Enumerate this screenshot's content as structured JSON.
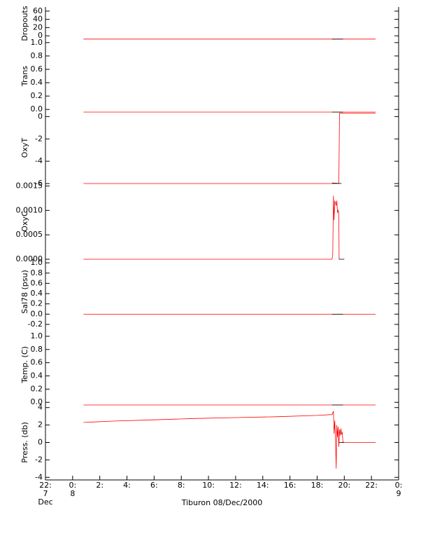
{
  "chart_data": [
    {
      "type": "line",
      "ylabel": "Dropouts",
      "ylim": [
        -10,
        70
      ],
      "yticks": [
        0,
        20,
        40,
        60
      ],
      "series": [
        {
          "color": "#ff0000",
          "x": [
            0.8,
            22.3
          ],
          "values": [
            -8,
            -8
          ]
        },
        {
          "color": "#000000",
          "x": [
            19.1,
            19.9
          ],
          "values": [
            -8,
            -8
          ]
        }
      ]
    },
    {
      "type": "line",
      "ylabel": "Trans",
      "ylim": [
        -0.04,
        1.04
      ],
      "yticks": [
        {
          "value": 0,
          "label": "0.0"
        },
        {
          "value": 0.2,
          "label": "0.2"
        },
        {
          "value": 0.4,
          "label": "0.4"
        },
        {
          "value": 0.6,
          "label": "0.6"
        },
        {
          "value": 0.8,
          "label": "0.8"
        },
        {
          "value": 1,
          "label": "1.0"
        }
      ],
      "series": [
        {
          "color": "#ff0000",
          "x": [
            0.8,
            22.3
          ],
          "values": [
            -0.04,
            -0.04
          ]
        },
        {
          "color": "#000000",
          "x": [
            19.1,
            19.9
          ],
          "values": [
            -0.04,
            -0.04
          ]
        }
      ]
    },
    {
      "type": "line",
      "ylabel": "OxyT",
      "ylim": [
        -6,
        0.4
      ],
      "yticks": [
        -6,
        -4,
        -2,
        0
      ],
      "series": [
        {
          "color": "#ff0000",
          "x": [
            0.8,
            19.6,
            19.65,
            22.3
          ],
          "values": [
            -6,
            -6,
            0.3,
            0.3
          ]
        },
        {
          "color": "#000000",
          "x": [
            19.1,
            19.8
          ],
          "values": [
            -5.95,
            -6
          ]
        }
      ]
    },
    {
      "type": "line",
      "ylabel": "OxyC",
      "ylim": [
        0,
        0.00155
      ],
      "yticks": [
        {
          "value": 0,
          "label": "0.0000"
        },
        {
          "value": 0.0005,
          "label": "0.0005"
        },
        {
          "value": 0.001,
          "label": "0.0010"
        },
        {
          "value": 0.0015,
          "label": "0.0015"
        }
      ],
      "series": [
        {
          "color": "#ff0000",
          "x": [
            0.8,
            19.1,
            19.15,
            19.2,
            19.25,
            19.3,
            19.4,
            19.45,
            19.5,
            19.55,
            19.6,
            19.62
          ],
          "values": [
            0,
            0,
            0.0001,
            0.0013,
            0.0008,
            0.0012,
            0.0011,
            0.0012,
            0.00095,
            0.001,
            0.00095,
            0
          ]
        },
        {
          "color": "#000000",
          "x": [
            19.6,
            20.0
          ],
          "values": [
            0,
            0
          ]
        }
      ]
    },
    {
      "type": "line",
      "ylabel": "Sal78 (psu)",
      "ylim": [
        -0.2,
        1.07
      ],
      "yticks": [
        {
          "value": -0.2,
          "label": "-0.2"
        },
        {
          "value": 0,
          "label": "0.0"
        },
        {
          "value": 0.2,
          "label": "0.2"
        },
        {
          "value": 0.4,
          "label": "0.4"
        },
        {
          "value": 0.6,
          "label": "0.6"
        },
        {
          "value": 0.8,
          "label": "0.8"
        },
        {
          "value": 1,
          "label": "1.0"
        }
      ],
      "series": [
        {
          "color": "#ff0000",
          "x": [
            0.8,
            22.3
          ],
          "values": [
            0,
            0
          ]
        },
        {
          "color": "#000000",
          "x": [
            19.1,
            19.9
          ],
          "values": [
            0,
            0
          ]
        }
      ]
    },
    {
      "type": "line",
      "ylabel": "Temp. (C)",
      "ylim": [
        -0.04,
        1.18
      ],
      "yticks": [
        {
          "value": 0,
          "label": "0.0"
        },
        {
          "value": 0.2,
          "label": "0.2"
        },
        {
          "value": 0.4,
          "label": "0.4"
        },
        {
          "value": 0.6,
          "label": "0.6"
        },
        {
          "value": 0.8,
          "label": "0.8"
        },
        {
          "value": 1,
          "label": "1.0"
        }
      ],
      "series": [
        {
          "color": "#ff0000",
          "x": [
            0.8,
            22.3
          ],
          "values": [
            -0.04,
            -0.04
          ]
        },
        {
          "color": "#000000",
          "x": [
            19.1,
            19.9
          ],
          "values": [
            -0.04,
            -0.04
          ]
        }
      ]
    },
    {
      "type": "line",
      "ylabel": "Press. (db)",
      "ylim": [
        -4.3,
        4.3
      ],
      "yticks": [
        -4,
        -2,
        0,
        2,
        4
      ],
      "xlabel": "Tiburon 08/Dec/2000",
      "xlim": [
        -2,
        24
      ],
      "xticks": [
        {
          "value": -2,
          "label": "22:"
        },
        {
          "value": 0,
          "label": "0:"
        },
        {
          "value": 2,
          "label": "2:"
        },
        {
          "value": 4,
          "label": "4:"
        },
        {
          "value": 6,
          "label": "6:"
        },
        {
          "value": 8,
          "label": "8:"
        },
        {
          "value": 10,
          "label": "10:"
        },
        {
          "value": 12,
          "label": "12:"
        },
        {
          "value": 14,
          "label": "14:"
        },
        {
          "value": 16,
          "label": "16:"
        },
        {
          "value": 18,
          "label": "18:"
        },
        {
          "value": 20,
          "label": "20:"
        },
        {
          "value": 22,
          "label": "22:"
        },
        {
          "value": 24,
          "label": "0:"
        }
      ],
      "date_labels": [
        {
          "value": -2,
          "label": "7"
        },
        {
          "value": 0,
          "label": "8"
        },
        {
          "value": 24,
          "label": "9"
        }
      ],
      "month_label": "Dec",
      "series": [
        {
          "color": "#ff0000",
          "x": [
            0.8,
            3,
            6,
            9,
            12,
            15,
            18,
            19.1,
            19.2,
            19.25,
            19.3,
            19.35,
            19.4,
            19.45,
            19.5,
            19.55,
            19.6,
            19.65,
            19.7,
            19.75,
            19.8,
            19.85,
            19.9,
            20,
            22.3
          ],
          "values": [
            2.3,
            2.45,
            2.6,
            2.75,
            2.85,
            2.95,
            3.1,
            3.2,
            3.6,
            1.0,
            2.5,
            0.5,
            -3.0,
            2.0,
            0.6,
            1.8,
            -0.5,
            1.5,
            0.8,
            1.6,
            0.9,
            1.2,
            0.0,
            0.0,
            0.0
          ]
        },
        {
          "color": "#000000",
          "x": [
            19.6,
            20.0
          ],
          "values": [
            0,
            0
          ]
        }
      ]
    }
  ]
}
